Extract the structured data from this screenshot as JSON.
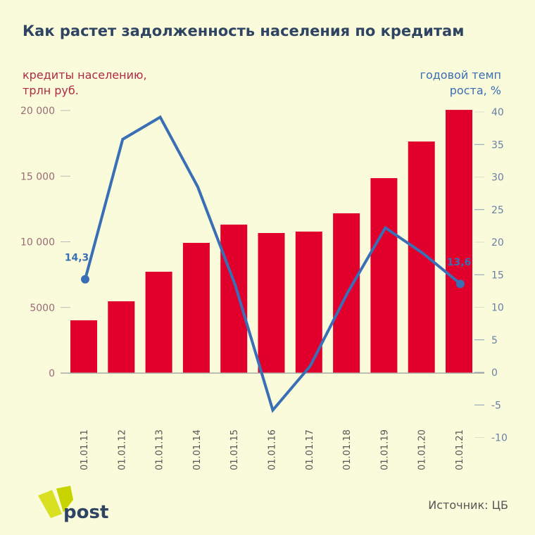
{
  "title": "Как растет задолженность населения по кредитам",
  "left_axis_label": [
    "кредиты населению,",
    "трлн руб."
  ],
  "right_axis_label": [
    "годовой темп",
    "роста, %"
  ],
  "source": "Источник: ЦБ",
  "logo_text": "post",
  "colors": {
    "bar": "#e0002b",
    "line": "#3a6fb5",
    "background": "#fafbdb",
    "title": "#2e4462"
  },
  "chart_data": {
    "type": "bar+line",
    "title": "Как растет задолженность населения по кредитам",
    "categories": [
      "01.01.11",
      "01.01.12",
      "01.01.13",
      "01.01.14",
      "01.01.15",
      "01.01.16",
      "01.01.17",
      "01.01.18",
      "01.01.19",
      "01.01.20",
      "01.01.21"
    ],
    "series": [
      {
        "name": "кредиты населению, трлн руб.",
        "type": "bar",
        "axis": "left",
        "values": [
          4020,
          5470,
          7720,
          9920,
          11310,
          10670,
          10780,
          12170,
          14850,
          17640,
          20050
        ]
      },
      {
        "name": "годовой темп роста, %",
        "type": "line",
        "axis": "right",
        "values": [
          14.3,
          35.8,
          39.2,
          28.5,
          13.4,
          -5.8,
          1.0,
          12.3,
          22.2,
          18.3,
          13.6
        ]
      }
    ],
    "left_axis": {
      "ylim": [
        0,
        20000
      ],
      "ticks": [
        0,
        5000,
        10000,
        15000,
        20000
      ],
      "tick_labels": [
        "0",
        "5000",
        "10 000",
        "15 000",
        "20 000"
      ]
    },
    "right_axis": {
      "ylim": [
        -10,
        40
      ],
      "ticks": [
        -10,
        -5,
        0,
        5,
        10,
        15,
        20,
        25,
        30,
        35,
        40
      ],
      "tick_labels": [
        "-10",
        "-5",
        "0",
        "5",
        "10",
        "15",
        "20",
        "25",
        "30",
        "35",
        "40"
      ]
    },
    "annotations": [
      {
        "index": 0,
        "text": "14,3"
      },
      {
        "index": 10,
        "text": "13,6"
      }
    ]
  }
}
